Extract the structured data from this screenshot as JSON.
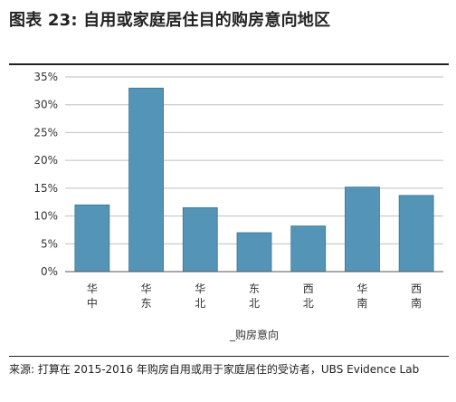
{
  "title": "图表 23: 自用或家庭居住目的购房意向地区",
  "source": "来源: 打算在 2015-2016 年购房自用或用于家庭居住的受访者，UBS Evidence Lab",
  "colors": {
    "bar": "#5494b6",
    "bar_stroke": "#3c7494",
    "grid": "#bfbfbf",
    "axis": "#555555",
    "text": "#333333"
  },
  "chart_data": {
    "type": "bar",
    "title": "",
    "xlabel": "_购房意向",
    "ylabel": "",
    "categories": [
      "华中",
      "华东",
      "华北",
      "东北",
      "西北",
      "华南",
      "西南"
    ],
    "category_lines": [
      [
        "华",
        "中"
      ],
      [
        "华",
        "东"
      ],
      [
        "华",
        "北"
      ],
      [
        "东",
        "北"
      ],
      [
        "西",
        "北"
      ],
      [
        "华",
        "南"
      ],
      [
        "西",
        "南"
      ]
    ],
    "values": [
      12,
      33,
      11.5,
      7,
      8.2,
      15.2,
      13.7
    ],
    "ylim": [
      0,
      35
    ],
    "yticks": [
      0,
      5,
      10,
      15,
      20,
      25,
      30,
      35
    ],
    "ytick_labels": [
      "0%",
      "5%",
      "10%",
      "15%",
      "20%",
      "25%",
      "30%",
      "35%"
    ],
    "grid": true,
    "legend": "none"
  }
}
